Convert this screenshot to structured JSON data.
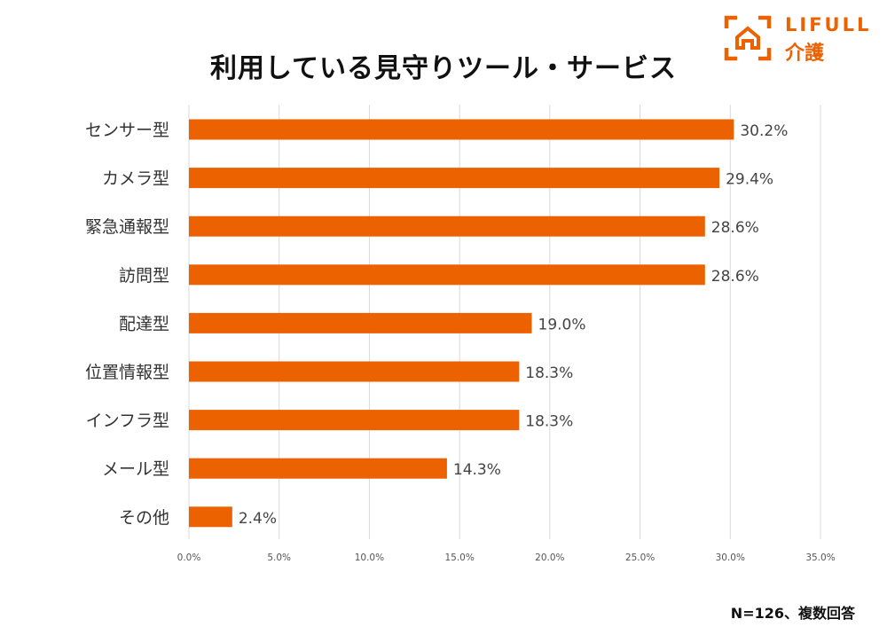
{
  "colors": {
    "bar": "#ec6200",
    "brand": "#ec6200",
    "grid": "#d9d9d9",
    "text": "#333333"
  },
  "logo": {
    "brand": "LIFULL",
    "sub": "介護",
    "icon": "house-bracket-icon"
  },
  "footnote": "N=126、複数回答",
  "chart_data": {
    "type": "bar",
    "orientation": "horizontal",
    "title": "利用している見守りツール・サービス",
    "categories": [
      "センサー型",
      "カメラ型",
      "緊急通報型",
      "訪問型",
      "配達型",
      "位置情報型",
      "インフラ型",
      "メール型",
      "その他"
    ],
    "values": [
      30.2,
      29.4,
      28.6,
      28.6,
      19.0,
      18.3,
      18.3,
      14.3,
      2.4
    ],
    "value_labels": [
      "30.2%",
      "29.4%",
      "28.6%",
      "28.6%",
      "19.0%",
      "18.3%",
      "18.3%",
      "14.3%",
      "2.4%"
    ],
    "xlim": [
      0,
      35
    ],
    "x_ticks": [
      0,
      5,
      10,
      15,
      20,
      25,
      30,
      35
    ],
    "x_tick_labels": [
      "0.0%",
      "5.0%",
      "10.0%",
      "15.0%",
      "20.0%",
      "25.0%",
      "30.0%",
      "35.0%"
    ],
    "xlabel": "",
    "ylabel": "",
    "grid": true,
    "legend": "none"
  }
}
